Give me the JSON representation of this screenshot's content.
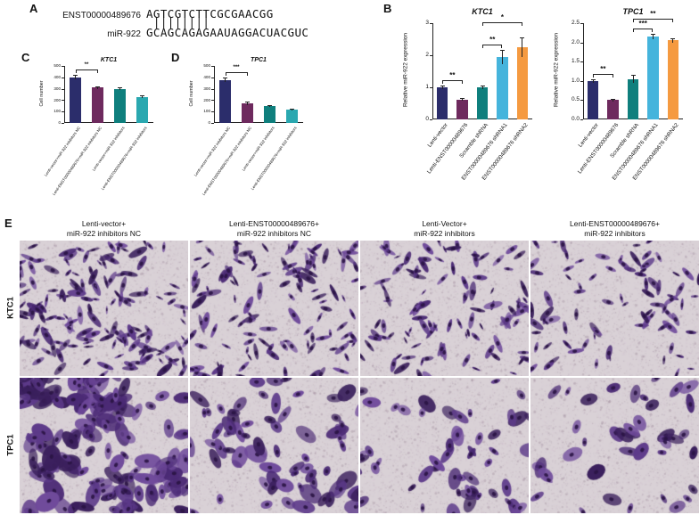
{
  "panels": {
    "a": "A",
    "b": "B",
    "c": "C",
    "d": "D",
    "e": "E"
  },
  "panel_a": {
    "transcript_label": "ENST00000489676",
    "transcript_seq": "AGTCGTCTTCGCGAACGG",
    "pairing_bars": " ||||||||",
    "mirna_label": "miR-922",
    "mirna_seq": "GCAGCAGAGAAUAGGACUACGUC"
  },
  "chart_data": [
    {
      "id": "panel-b-ktc1",
      "type": "bar",
      "title": "KTC1",
      "ylabel": "Relative miR-922 expression",
      "categories": [
        "Lenti-vector",
        "Lenti-ENST00000489676",
        "Scramble shRNA",
        "ENST00000489676 shRNA1",
        "ENST00000489676 shRNA2"
      ],
      "values": [
        1.0,
        0.62,
        1.0,
        1.95,
        2.25
      ],
      "errors": [
        0.05,
        0.04,
        0.06,
        0.22,
        0.3
      ],
      "colors": [
        "#2b2d6b",
        "#6e2a5e",
        "#0f7f7d",
        "#45b4dc",
        "#f59a40"
      ],
      "ylim": [
        0,
        3
      ],
      "yticks": [
        "0",
        "1",
        "2",
        "3"
      ],
      "grid": false,
      "brackets": [
        {
          "from": 0,
          "to": 1,
          "label": "**",
          "level": 0
        },
        {
          "from": 2,
          "to": 3,
          "label": "**",
          "level": 0
        },
        {
          "from": 2,
          "to": 4,
          "label": "*",
          "level": 1
        }
      ]
    },
    {
      "id": "panel-b-tpc1",
      "type": "bar",
      "title": "TPC1",
      "ylabel": "Relative miR-922 expression",
      "categories": [
        "Lenti-vector",
        "Lenti-ENST00000489676",
        "Scramble shRNA",
        "ENST00000489676 shRNA1",
        "ENST00000489676 shRNA2"
      ],
      "values": [
        1.0,
        0.5,
        1.05,
        2.15,
        2.05
      ],
      "errors": [
        0.05,
        0.03,
        0.1,
        0.07,
        0.05
      ],
      "colors": [
        "#2b2d6b",
        "#6e2a5e",
        "#0f7f7d",
        "#45b4dc",
        "#f59a40"
      ],
      "ylim": [
        0,
        2.5
      ],
      "yticks": [
        "0.0",
        "0.5",
        "1.0",
        "1.5",
        "2.0",
        "2.5"
      ],
      "grid": false,
      "brackets": [
        {
          "from": 0,
          "to": 1,
          "label": "**",
          "level": 0
        },
        {
          "from": 2,
          "to": 3,
          "label": "***",
          "level": 0
        },
        {
          "from": 2,
          "to": 4,
          "label": "**",
          "level": 1
        }
      ]
    },
    {
      "id": "panel-c-ktc1",
      "type": "bar",
      "title": "KTC1",
      "ylabel": "Cell number",
      "categories": [
        "Lenti-vector+miR-922 inhibitors NC",
        "Lenti-ENST00000489676+miR-922 inhibitors NC",
        "Lenti-vector+miR-922 inhibitors",
        "Lenti-ENST00000489676+miR-922 inhibitors"
      ],
      "values": [
        400,
        310,
        300,
        230
      ],
      "errors": [
        18,
        14,
        12,
        10
      ],
      "colors": [
        "#2b2d6b",
        "#6e2a5e",
        "#0f7f7d",
        "#2aa8b0"
      ],
      "ylim": [
        0,
        500
      ],
      "yticks": [
        "0",
        "100",
        "200",
        "300",
        "400",
        "500"
      ],
      "grid": false,
      "brackets": [
        {
          "from": 0,
          "to": 1,
          "label": "**",
          "level": 0
        }
      ]
    },
    {
      "id": "panel-d-tpc1",
      "type": "bar",
      "title": "TPC1",
      "ylabel": "Cell number",
      "categories": [
        "Lenti-vector+miR-922 inhibitors NC",
        "Lenti-ENST00000489676+miR-922 inhibitors NC",
        "Lenti-vector+miR-922 inhibitors",
        "Lenti-ENST00000489676+miR-922 inhibitors"
      ],
      "values": [
        378,
        172,
        150,
        118
      ],
      "errors": [
        20,
        12,
        10,
        8
      ],
      "colors": [
        "#2b2d6b",
        "#6e2a5e",
        "#0f7f7d",
        "#2aa8b0"
      ],
      "ylim": [
        0,
        500
      ],
      "yticks": [
        "0",
        "100",
        "200",
        "300",
        "400",
        "500"
      ],
      "grid": false,
      "brackets": [
        {
          "from": 0,
          "to": 1,
          "label": "***",
          "level": 0
        }
      ]
    }
  ],
  "panel_e": {
    "col_headers": [
      {
        "line1": "Lenti-vector+",
        "line2": "miR-922 inhibitors NC"
      },
      {
        "line1": "Lenti-ENST00000489676+",
        "line2": "miR-922 inhibitors NC"
      },
      {
        "line1": "Lenti-Vector+",
        "line2": "miR-922 inhibitors"
      },
      {
        "line1": "Lenti-ENST00000489676+",
        "line2": "miR-922 inhibitors"
      }
    ],
    "row_labels": [
      "KTC1",
      "TPC1"
    ],
    "stain_color": "#4b2a75",
    "background_color": "#d9d1d6",
    "micrographs": [
      [
        {
          "cells": 150,
          "cluster": 0.25,
          "size": 1.15,
          "aspect": 0.3
        },
        {
          "cells": 120,
          "cluster": 0.25,
          "size": 1.1,
          "aspect": 0.3
        },
        {
          "cells": 105,
          "cluster": 0.2,
          "size": 1.1,
          "aspect": 0.3
        },
        {
          "cells": 85,
          "cluster": 0.2,
          "size": 1.05,
          "aspect": 0.3
        }
      ],
      [
        {
          "cells": 170,
          "cluster": 0.75,
          "size": 1.5,
          "aspect": 0.55
        },
        {
          "cells": 75,
          "cluster": 0.45,
          "size": 1.35,
          "aspect": 0.55
        },
        {
          "cells": 55,
          "cluster": 0.35,
          "size": 1.25,
          "aspect": 0.55
        },
        {
          "cells": 42,
          "cluster": 0.3,
          "size": 1.2,
          "aspect": 0.55
        }
      ]
    ]
  }
}
